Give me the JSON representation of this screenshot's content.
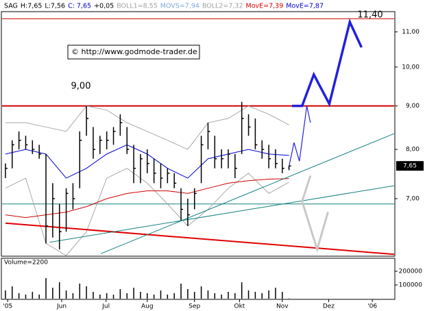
{
  "chart_data": [
    {
      "type": "ohlc",
      "log": true,
      "header": [
        {
          "text": "SAG",
          "color": "#000000"
        },
        {
          "text": "H:7,65",
          "color": "#000000"
        },
        {
          "text": "L:7,56",
          "color": "#000000"
        },
        {
          "text": "C: 7,65",
          "color": "#0000c0"
        },
        {
          "text": "+0,05",
          "color": "#000000"
        },
        {
          "text": "BOLL1=8,55",
          "color": "#a0a0a0"
        },
        {
          "text": "MOVS=7,94",
          "color": "#7fa8d8"
        },
        {
          "text": "BOLL2=7,32",
          "color": "#a0a0a0"
        },
        {
          "text": "MovE=7,39",
          "color": "#d00000"
        },
        {
          "text": "MovE=7,87",
          "color": "#0000d0"
        }
      ],
      "annotations": [
        {
          "text": "11,40"
        },
        {
          "text": "9,00"
        },
        {
          "text": "© http://www.godmode-trader.de"
        }
      ],
      "xlim": [
        -1.5,
        172.7
      ],
      "ylim": [
        6.0,
        11.6
      ],
      "yticks": [
        {
          "value": 7,
          "label": "7,00"
        },
        {
          "value": 8,
          "label": "8,00"
        },
        {
          "value": 9,
          "label": "9,00"
        },
        {
          "value": 10,
          "label": "10,00"
        },
        {
          "value": 11,
          "label": "11,00"
        }
      ],
      "last": {
        "value": 7.65,
        "label": "7,65"
      },
      "color": "#000000",
      "x": [
        0,
        3,
        6,
        9,
        12,
        15,
        18,
        21,
        24,
        27,
        30,
        33,
        36,
        39,
        42,
        45,
        48,
        51,
        54,
        57,
        60,
        63,
        66,
        69,
        72,
        75,
        78,
        81,
        84,
        87,
        90,
        93,
        96,
        99,
        102,
        105,
        108,
        111,
        114,
        117,
        120,
        123,
        126
      ],
      "high": [
        7.7,
        8.2,
        8.4,
        8.3,
        8.2,
        8.1,
        7.9,
        7.3,
        6.9,
        7.2,
        7.3,
        8.4,
        9.0,
        8.5,
        8.3,
        8.4,
        8.5,
        8.8,
        8.5,
        8.1,
        7.9,
        8.0,
        7.8,
        7.7,
        7.6,
        7.5,
        7.2,
        7.0,
        7.2,
        8.3,
        8.6,
        8.3,
        8.0,
        8.0,
        7.9,
        9.1,
        8.8,
        8.7,
        8.2,
        8.1,
        8.0,
        7.8,
        7.65
      ],
      "low": [
        7.4,
        7.6,
        8.0,
        8.0,
        7.9,
        7.8,
        6.2,
        6.3,
        6.1,
        6.4,
        6.8,
        7.2,
        8.3,
        7.8,
        7.9,
        8.0,
        8.1,
        8.3,
        7.9,
        7.3,
        7.3,
        7.5,
        7.3,
        7.2,
        7.3,
        7.2,
        6.6,
        6.5,
        6.8,
        7.3,
        8.0,
        7.6,
        7.6,
        7.6,
        7.4,
        7.9,
        8.3,
        8.0,
        7.8,
        7.6,
        7.6,
        7.5,
        7.56
      ],
      "close": [
        7.6,
        8.1,
        8.2,
        8.1,
        8.0,
        7.9,
        6.5,
        7.0,
        6.4,
        7.1,
        7.0,
        8.2,
        8.7,
        8.0,
        8.2,
        8.2,
        8.4,
        8.6,
        8.0,
        7.6,
        7.8,
        7.7,
        7.5,
        7.4,
        7.5,
        7.3,
        6.8,
        6.7,
        7.1,
        8.1,
        8.4,
        7.8,
        7.8,
        7.9,
        7.6,
        8.7,
        8.5,
        8.1,
        8.0,
        7.8,
        7.7,
        7.6,
        7.65
      ],
      "lines": [
        {
          "color": "#a8a8a8",
          "width": 1,
          "x": [
            0,
            9,
            18,
            27,
            36,
            45,
            54,
            63,
            72,
            81,
            90,
            99,
            108,
            117,
            126
          ],
          "values": [
            8.6,
            8.6,
            8.5,
            8.4,
            9.0,
            8.9,
            8.6,
            8.4,
            8.2,
            8.0,
            8.6,
            8.7,
            9.0,
            8.8,
            8.55
          ]
        },
        {
          "color": "#a8a8a8",
          "width": 1,
          "x": [
            0,
            9,
            18,
            27,
            36,
            45,
            54,
            63,
            72,
            81,
            90,
            99,
            108,
            117,
            126
          ],
          "values": [
            7.2,
            7.4,
            6.2,
            6.0,
            6.4,
            7.4,
            7.6,
            7.3,
            6.9,
            6.5,
            6.8,
            7.2,
            7.5,
            7.1,
            7.32
          ]
        },
        {
          "color": "#0000d0",
          "width": 1,
          "x": [
            0,
            9,
            18,
            27,
            36,
            45,
            54,
            63,
            72,
            81,
            90,
            99,
            108,
            117,
            126
          ],
          "values": [
            7.9,
            8.0,
            7.9,
            7.4,
            7.6,
            7.9,
            8.1,
            7.9,
            7.6,
            7.4,
            7.8,
            7.9,
            8.0,
            7.9,
            7.87
          ]
        },
        {
          "color": "#d00000",
          "width": 1,
          "x": [
            0,
            9,
            18,
            27,
            36,
            45,
            54,
            63,
            72,
            81,
            90,
            99,
            108,
            117,
            126
          ],
          "values": [
            6.7,
            6.65,
            6.7,
            6.75,
            6.85,
            7.0,
            7.1,
            7.15,
            7.15,
            7.1,
            7.2,
            7.3,
            7.35,
            7.38,
            7.39
          ]
        },
        {
          "color": "#e00000",
          "width": 2,
          "x": [
            0,
            172.7
          ],
          "values": [
            6.55,
            6.02
          ]
        },
        {
          "color": "#128080",
          "width": 1,
          "x": [
            42.4,
            172.7
          ],
          "values": [
            6.03,
            8.35
          ]
        },
        {
          "color": "#128080",
          "width": 1,
          "x": [
            19.7,
            172.7
          ],
          "values": [
            6.22,
            7.25
          ]
        },
        {
          "color": "#2020e0",
          "width": 3.5,
          "x": [
            127.3,
            131.8,
            137,
            143.9,
            153,
            158.2
          ],
          "values": [
            9.0,
            9.0,
            9.8,
            9.05,
            11.3,
            10.55
          ]
        },
        {
          "color": "#2020e0",
          "width": 1.2,
          "x": [
            125.8,
            128.2,
            130.6,
            133.9,
            135.5
          ],
          "values": [
            7.6,
            8.15,
            7.75,
            9.0,
            8.6
          ]
        },
        {
          "color": "#c8c8c8",
          "width": 3,
          "x": [
            135.5,
            131.8,
            138.5,
            143.3
          ],
          "values": [
            7.45,
            6.95,
            6.1,
            6.75
          ]
        }
      ],
      "levels": [
        {
          "color": "#d00000",
          "width": 1,
          "value": 11.4
        },
        {
          "color": "#d00000",
          "width": 2,
          "value": 9.0
        },
        {
          "color": "#128080",
          "width": 1,
          "value": 6.9
        }
      ]
    },
    {
      "type": "volume",
      "title": "Volume=2200",
      "color": "#000000",
      "xlim": [
        -1.5,
        172.7
      ],
      "ylim": [
        0,
        280000
      ],
      "yticks": [
        100000,
        200000
      ],
      "xticks": [
        {
          "value": 1,
          "label": "'05"
        },
        {
          "value": 25,
          "label": "Jun"
        },
        {
          "value": 44.7,
          "label": "Jul"
        },
        {
          "value": 63,
          "label": "Aug"
        },
        {
          "value": 84,
          "label": "Sep"
        },
        {
          "value": 104,
          "label": "Okt"
        },
        {
          "value": 123,
          "label": "Nov"
        },
        {
          "value": 143.6,
          "label": "Dez"
        },
        {
          "value": 163,
          "label": "'06"
        }
      ],
      "x": [
        0,
        3,
        6,
        9,
        12,
        15,
        18,
        21,
        24,
        27,
        30,
        33,
        36,
        39,
        42,
        45,
        48,
        51,
        54,
        57,
        60,
        63,
        66,
        69,
        72,
        75,
        78,
        81,
        84,
        87,
        90,
        93,
        96,
        99,
        102,
        105,
        108,
        111,
        114,
        117,
        120,
        123,
        126
      ],
      "values": [
        60000,
        90000,
        40000,
        30000,
        50000,
        30000,
        150000,
        80000,
        120000,
        60000,
        40000,
        110000,
        90000,
        50000,
        30000,
        40000,
        30000,
        70000,
        40000,
        80000,
        50000,
        40000,
        30000,
        60000,
        30000,
        40000,
        110000,
        70000,
        50000,
        90000,
        60000,
        40000,
        30000,
        50000,
        40000,
        120000,
        60000,
        50000,
        40000,
        60000,
        80000,
        50000,
        2200
      ]
    }
  ]
}
